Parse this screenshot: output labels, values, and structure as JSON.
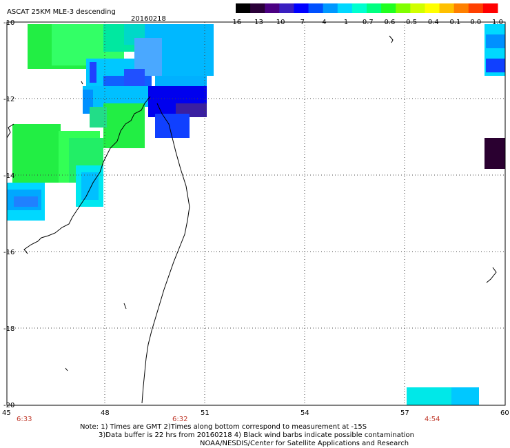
{
  "header": {
    "title": "ASCAT 25KM MLE-3 descending",
    "date": "20160218"
  },
  "colorbar": {
    "labels": [
      "-16",
      "-13",
      "-10",
      "-7",
      "-4",
      "-1",
      "-0.7",
      "-0.6",
      "-0.5",
      "-0.4",
      "-0.1",
      "0.0",
      "1.0"
    ],
    "colors": [
      "#000000",
      "#2a0038",
      "#4b0082",
      "#3a1fc0",
      "#0000ff",
      "#0050ff",
      "#0098ff",
      "#00d8ff",
      "#00ffd0",
      "#00ff80",
      "#20ff20",
      "#80ff00",
      "#d0ff00",
      "#ffff00",
      "#ffc000",
      "#ff8000",
      "#ff4000",
      "#ff0000"
    ]
  },
  "axes": {
    "y_labels": [
      "-10",
      "-12",
      "-14",
      "-16",
      "-18",
      "-20"
    ],
    "x_labels": [
      "45",
      "48",
      "51",
      "54",
      "57",
      "60"
    ]
  },
  "pass_times": [
    "6:33",
    "6:32",
    "4:54"
  ],
  "notes": {
    "line1": "Note: 1) Times are GMT 2)Times along bottom correspond to measurement at -15S",
    "line2": "3)Data buffer is 22 hrs from 20160218 4) Black wind barbs indicate possible contamination",
    "line3": "NOAA/NESDIS/Center for Satellite Applications and Research"
  }
}
